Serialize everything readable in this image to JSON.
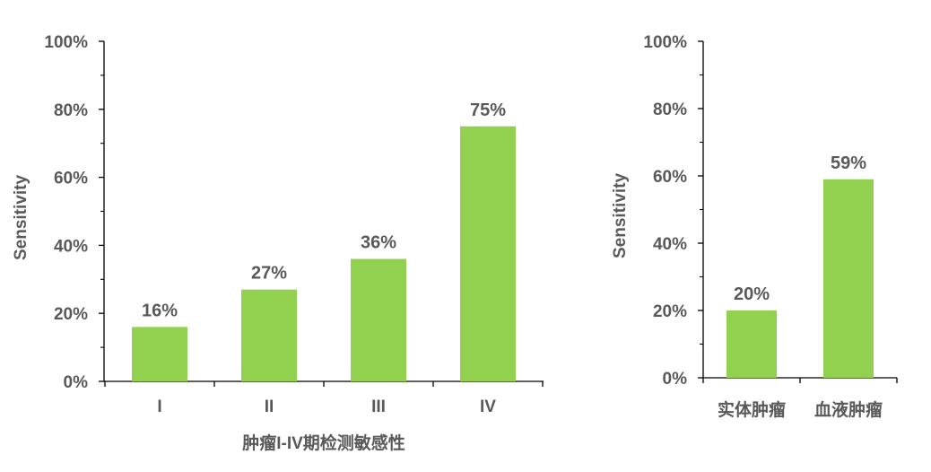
{
  "colors": {
    "bar": "#92D050",
    "axis": "#000000",
    "text": "#595959"
  },
  "chart_data": [
    {
      "type": "bar",
      "title": "",
      "categories": [
        "I",
        "II",
        "III",
        "IV"
      ],
      "values": [
        16,
        27,
        36,
        75
      ],
      "value_labels": [
        "16%",
        "27%",
        "36%",
        "75%"
      ],
      "ylim": [
        0,
        100
      ],
      "yticks": [
        "0%",
        "20%",
        "40%",
        "60%",
        "80%",
        "100%"
      ],
      "ylabel": "Sensitivity",
      "xlabel": "肿瘤I-IV期检测敏感性",
      "grid": false,
      "legend": "none"
    },
    {
      "type": "bar",
      "title": "",
      "categories": [
        "实体肿瘤",
        "血液肿瘤"
      ],
      "values": [
        20,
        59
      ],
      "value_labels": [
        "20%",
        "59%"
      ],
      "ylim": [
        0,
        100
      ],
      "yticks": [
        "0%",
        "20%",
        "40%",
        "60%",
        "80%",
        "100%"
      ],
      "ylabel": "Sensitivity",
      "xlabel": "",
      "grid": false,
      "legend": "none"
    }
  ]
}
